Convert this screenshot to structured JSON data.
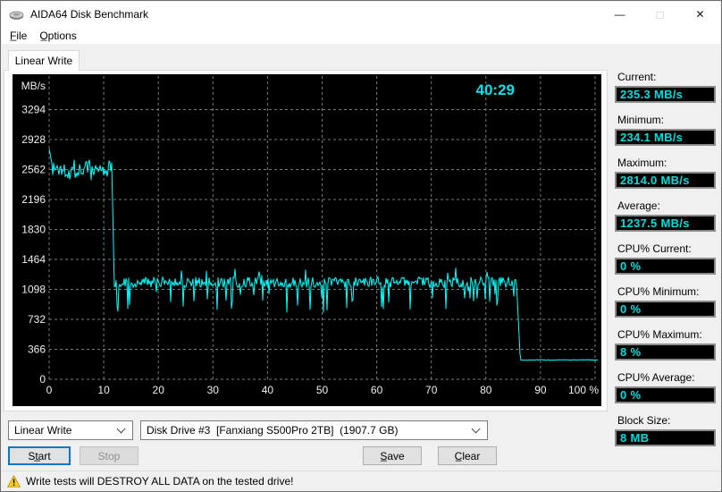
{
  "window": {
    "title": "AIDA64 Disk Benchmark",
    "controls": {
      "minimize": "—",
      "maximize": "□",
      "close": "✕"
    }
  },
  "menu": {
    "items": [
      "F̲ile",
      "O̲ptions"
    ]
  },
  "tab": {
    "label": "Linear Write"
  },
  "chart_data": {
    "type": "line",
    "ylabel": "MB/s",
    "timer": "40:29",
    "timer_color": "#00e5ee",
    "line_color": "#00ffff",
    "grid_color": "#7c7c7c",
    "axis_text_color": "#efefef",
    "bg": "#000000",
    "y_ticks": [
      0,
      366,
      732,
      1098,
      1464,
      1830,
      2196,
      2562,
      2928,
      3294
    ],
    "x_ticks": [
      0,
      10,
      20,
      30,
      40,
      50,
      60,
      70,
      80,
      90
    ],
    "x_last_tick_label": "100 %",
    "x_range_percent": [
      0,
      100
    ],
    "grid": "dashed",
    "stats": {
      "current": 235.3,
      "minimum": 234.1,
      "maximum": 2814.0,
      "average": 1237.5,
      "unit": "MB/s"
    },
    "seed": 1337,
    "segments": [
      {
        "type": "spike",
        "from_pct": 0.0,
        "to_pct": 0.5,
        "start_value": 2814,
        "end_value": 2640
      },
      {
        "type": "noisy",
        "from_pct": 0.5,
        "to_pct": 11.5,
        "mean": 2570,
        "amplitude": 120,
        "dip_chance": 0.08,
        "dip_depth": 170,
        "up_chance": 0,
        "up_height": 0
      },
      {
        "type": "cliff",
        "from_pct": 11.5,
        "to_pct": 11.9,
        "start_value": 2550,
        "end_value": 1260
      },
      {
        "type": "noisy",
        "from_pct": 11.9,
        "to_pct": 85.6,
        "mean": 1185,
        "amplitude": 65,
        "dip_chance": 0.1,
        "dip_depth": 380,
        "up_chance": 0.04,
        "up_height": 140
      },
      {
        "type": "cliff",
        "from_pct": 85.6,
        "to_pct": 86.3,
        "start_value": 1180,
        "end_value": 240
      },
      {
        "type": "noisy",
        "from_pct": 86.3,
        "to_pct": 100.5,
        "mean": 236,
        "amplitude": 5,
        "dip_chance": 0,
        "dip_depth": 0,
        "up_chance": 0,
        "up_height": 0
      }
    ]
  },
  "stats_panel": {
    "groups": [
      {
        "label": "Current:",
        "value": "235.3 MB/s"
      },
      {
        "label": "Minimum:",
        "value": "234.1 MB/s"
      },
      {
        "label": "Maximum:",
        "value": "2814.0 MB/s"
      },
      {
        "label": "Average:",
        "value": "1237.5 MB/s"
      },
      {
        "label": "CPU% Current:",
        "value": "0 %"
      },
      {
        "label": "CPU% Minimum:",
        "value": "0 %"
      },
      {
        "label": "CPU% Maximum:",
        "value": "8 %"
      },
      {
        "label": "CPU% Average:",
        "value": "0 %"
      },
      {
        "label": "Block Size:",
        "value": "8 MB"
      }
    ]
  },
  "controls": {
    "test_type_combo": {
      "value": "Linear Write"
    },
    "drive_combo": {
      "value": "Disk Drive #3  [Fanxiang S500Pro 2TB]  (1907.7 GB)"
    },
    "start_label": "St̲art",
    "stop_label": "Stop",
    "save_label": "S̲ave",
    "clear_label": "C̲lear"
  },
  "status_bar": {
    "text": "Write tests will DESTROY ALL DATA on the tested drive!"
  }
}
